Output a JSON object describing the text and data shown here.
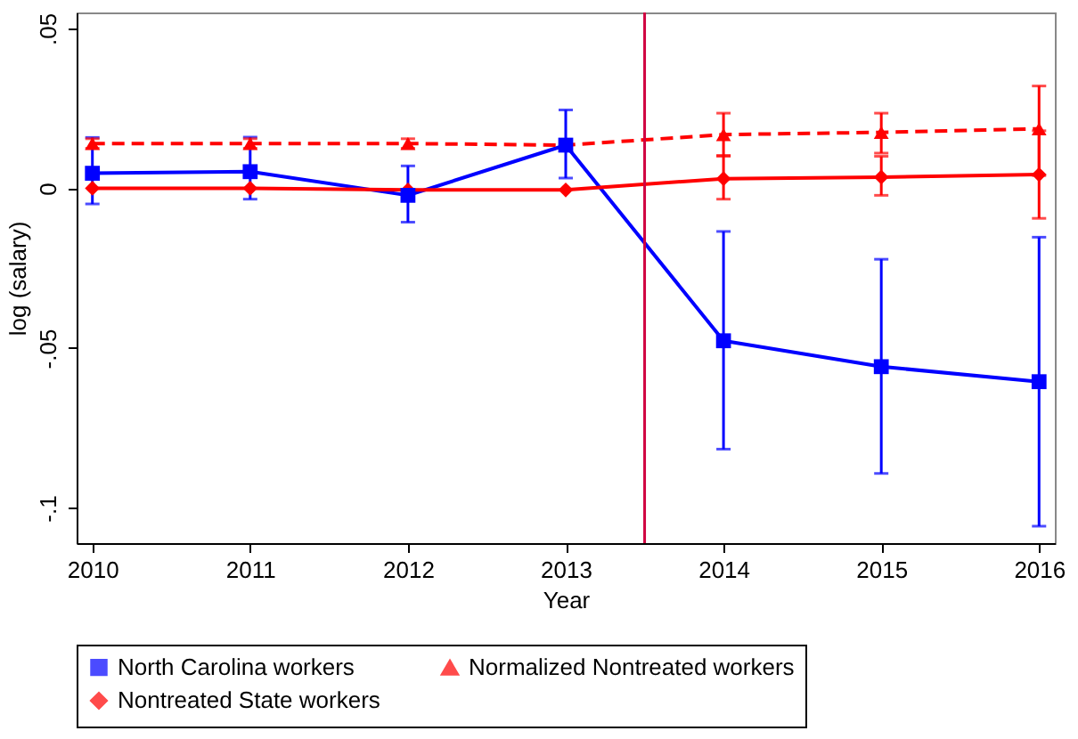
{
  "chart_data": {
    "type": "line",
    "xlabel": "Year",
    "ylabel": "log (salary)",
    "x": [
      2010,
      2011,
      2012,
      2013,
      2014,
      2015,
      2016
    ],
    "xlim": [
      2009.9,
      2016.1
    ],
    "xticks": [
      2010,
      2011,
      2012,
      2013,
      2014,
      2015,
      2016
    ],
    "ylim": [
      -0.111,
      0.055
    ],
    "yticks": [
      {
        "value": 0.05,
        "label": ".05"
      },
      0,
      {
        "value": -0.05,
        "label": "-.05"
      },
      {
        "value": -0.1,
        "label": "-.1"
      }
    ],
    "series": [
      {
        "name": "North Carolina workers",
        "color": "#0000ff",
        "marker": "square",
        "line_style": "solid",
        "values": [
          0.0047,
          0.0052,
          -0.0022,
          0.0135,
          -0.0477,
          -0.0558,
          -0.0605
        ],
        "errors": [
          [
            -0.0049,
            0.0159
          ],
          [
            -0.0034,
            0.016
          ],
          [
            -0.0106,
            0.007
          ],
          [
            0.0032,
            0.0245
          ],
          [
            -0.0816,
            -0.0135
          ],
          [
            -0.0892,
            -0.0222
          ],
          [
            -0.1057,
            -0.0153
          ]
        ]
      },
      {
        "name": "Normalized Nontreated workers",
        "color": "#ff0000",
        "marker": "triangle",
        "line_style": "dashed",
        "values": [
          0.014,
          0.014,
          0.014,
          0.0135,
          0.0168,
          0.0175,
          0.0186
        ],
        "errors": [
          [
            0.0125,
            0.0155
          ],
          [
            0.0125,
            0.0155
          ],
          [
            0.0125,
            0.0155
          ],
          null,
          [
            0.01,
            0.0235
          ],
          [
            0.011,
            0.0235
          ],
          [
            0.004,
            0.032
          ]
        ]
      },
      {
        "name": "Nontreated State workers",
        "color": "#ff0000",
        "marker": "diamond",
        "line_style": "solid",
        "values": [
          0,
          0,
          -0.0005,
          -0.0005,
          0.003,
          0.0035,
          0.0043
        ],
        "errors": [
          null,
          null,
          null,
          null,
          [
            -0.0034,
            0.0103
          ],
          [
            -0.0022,
            0.01
          ],
          [
            -0.0094,
            0.018
          ]
        ]
      }
    ],
    "ref_lines": [
      {
        "axis": "x",
        "value": 2013.5,
        "color": "#d00040"
      }
    ],
    "grid": false,
    "legend": "bottom"
  }
}
